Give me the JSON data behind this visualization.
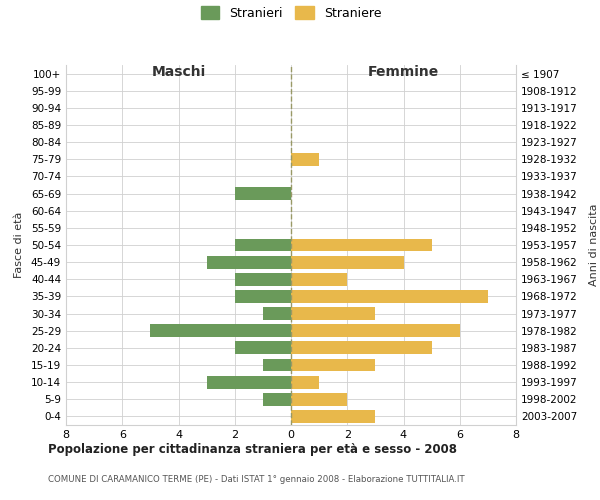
{
  "age_groups": [
    "0-4",
    "5-9",
    "10-14",
    "15-19",
    "20-24",
    "25-29",
    "30-34",
    "35-39",
    "40-44",
    "45-49",
    "50-54",
    "55-59",
    "60-64",
    "65-69",
    "70-74",
    "75-79",
    "80-84",
    "85-89",
    "90-94",
    "95-99",
    "100+"
  ],
  "birth_years": [
    "2003-2007",
    "1998-2002",
    "1993-1997",
    "1988-1992",
    "1983-1987",
    "1978-1982",
    "1973-1977",
    "1968-1972",
    "1963-1967",
    "1958-1962",
    "1953-1957",
    "1948-1952",
    "1943-1947",
    "1938-1942",
    "1933-1937",
    "1928-1932",
    "1923-1927",
    "1918-1922",
    "1913-1917",
    "1908-1912",
    "≤ 1907"
  ],
  "maschi": [
    0,
    1,
    3,
    1,
    2,
    5,
    1,
    2,
    2,
    3,
    2,
    0,
    0,
    2,
    0,
    0,
    0,
    0,
    0,
    0,
    0
  ],
  "femmine": [
    3,
    2,
    1,
    3,
    5,
    6,
    3,
    7,
    2,
    4,
    5,
    0,
    0,
    0,
    0,
    1,
    0,
    0,
    0,
    0,
    0
  ],
  "maschi_color": "#6a9a5a",
  "femmine_color": "#e8b84b",
  "title": "Popolazione per cittadinanza straniera per età e sesso - 2008",
  "subtitle": "COMUNE DI CARAMANICO TERME (PE) - Dati ISTAT 1° gennaio 2008 - Elaborazione TUTTITALIA.IT",
  "ylabel_left": "Fasce di età",
  "ylabel_right": "Anni di nascita",
  "label_maschi": "Maschi",
  "label_femmine": "Femmine",
  "legend_maschi": "Stranieri",
  "legend_femmine": "Straniere",
  "xlim": 8,
  "background_color": "#ffffff",
  "grid_color": "#d0d0d0"
}
